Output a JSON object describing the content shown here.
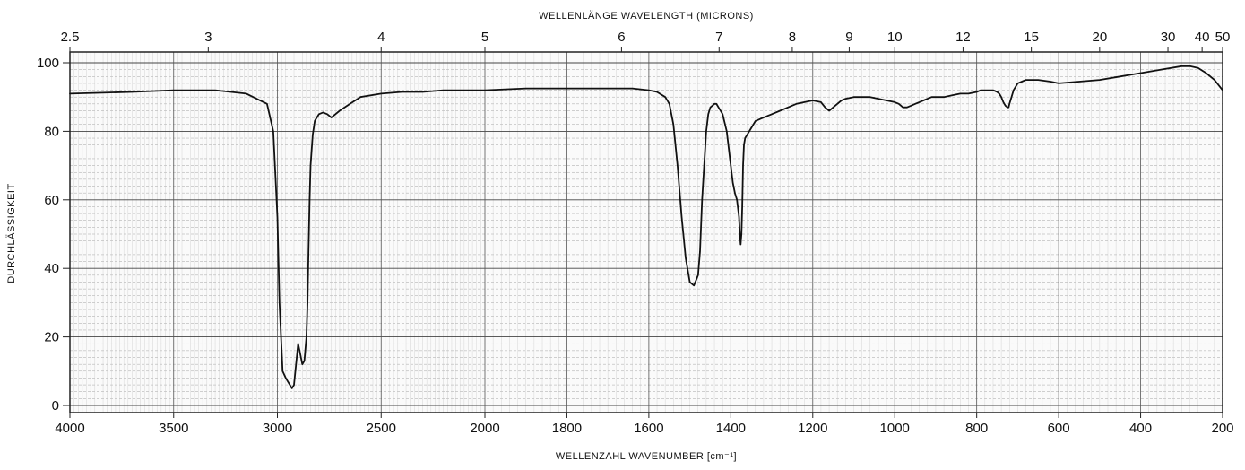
{
  "chart_data": {
    "type": "line",
    "top_axis_label": "WELLENLÄNGE  WAVELENGTH (MICRONS)",
    "bottom_axis_label": "WELLENZAHL WAVENUMBER [cm⁻¹]",
    "y_axis_label": "DURCHLÄSSIGKEIT",
    "xlim": [
      4000,
      200
    ],
    "ylim": [
      0,
      100
    ],
    "x_ticks": [
      4000,
      3500,
      3000,
      2500,
      2000,
      1800,
      1600,
      1400,
      1200,
      1000,
      800,
      600,
      400,
      200
    ],
    "x_tick_labels": [
      "4000",
      "3500",
      "3000",
      "2500",
      "2000",
      "1800",
      "1600",
      "1400",
      "1200",
      "1000",
      "800",
      "600",
      "400",
      "200"
    ],
    "y_ticks": [
      0,
      20,
      40,
      60,
      80,
      100
    ],
    "y_tick_labels": [
      "0",
      "20",
      "40",
      "60",
      "80",
      "100"
    ],
    "wavelength_ticks": [
      {
        "label": "2.5",
        "micron": 2.5
      },
      {
        "label": "3",
        "micron": 3
      },
      {
        "label": "4",
        "micron": 4
      },
      {
        "label": "5",
        "micron": 5
      },
      {
        "label": "6",
        "micron": 6
      },
      {
        "label": "7",
        "micron": 7
      },
      {
        "label": "8",
        "micron": 8
      },
      {
        "label": "9",
        "micron": 9
      },
      {
        "label": "10",
        "micron": 10
      },
      {
        "label": "12",
        "micron": 12
      },
      {
        "label": "15",
        "micron": 15
      },
      {
        "label": "20",
        "micron": 20
      },
      {
        "label": "30",
        "micron": 30
      },
      {
        "label": "40",
        "micron": 40
      },
      {
        "label": "50",
        "micron": 50
      }
    ],
    "grid": true,
    "series": [
      {
        "x": [
          4000,
          3700,
          3500,
          3300,
          3150,
          3050,
          3020,
          3000,
          2990,
          2975,
          2960,
          2950,
          2940,
          2930,
          2920,
          2910,
          2900,
          2890,
          2880,
          2870,
          2860,
          2855,
          2850,
          2845,
          2840,
          2830,
          2820,
          2800,
          2780,
          2760,
          2740,
          2720,
          2700,
          2650,
          2600,
          2500,
          2400,
          2300,
          2200,
          2100,
          2000,
          1900,
          1800,
          1700,
          1640,
          1600,
          1580,
          1560,
          1550,
          1540,
          1530,
          1520,
          1510,
          1500,
          1490,
          1480,
          1475,
          1470,
          1465,
          1460,
          1455,
          1450,
          1445,
          1440,
          1435,
          1430,
          1420,
          1410,
          1400,
          1395,
          1390,
          1385,
          1380,
          1378,
          1376,
          1374,
          1372,
          1370,
          1368,
          1365,
          1360,
          1350,
          1340,
          1320,
          1300,
          1280,
          1260,
          1240,
          1220,
          1200,
          1180,
          1170,
          1160,
          1150,
          1140,
          1130,
          1120,
          1100,
          1080,
          1060,
          1040,
          1020,
          1000,
          990,
          980,
          970,
          960,
          950,
          940,
          930,
          920,
          910,
          900,
          880,
          860,
          840,
          830,
          820,
          800,
          790,
          780,
          770,
          760,
          750,
          745,
          740,
          735,
          730,
          725,
          722,
          720,
          715,
          710,
          700,
          690,
          680,
          650,
          620,
          600,
          550,
          500,
          450,
          400,
          350,
          300,
          280,
          260,
          240,
          220,
          200
        ],
        "y": [
          91,
          91.5,
          92,
          92,
          91,
          88,
          80,
          55,
          30,
          10,
          8,
          7,
          6,
          5,
          6,
          12,
          18,
          15,
          12,
          13,
          20,
          30,
          45,
          60,
          70,
          79,
          83,
          85,
          85.5,
          85,
          84,
          85,
          86,
          88,
          90,
          91,
          91.5,
          91.5,
          92,
          92,
          92,
          92.5,
          92.5,
          92.5,
          92.5,
          92,
          91.5,
          90,
          88,
          82,
          70,
          55,
          43,
          36,
          35,
          38,
          45,
          60,
          70,
          80,
          85,
          87,
          87.5,
          88,
          88,
          87,
          85,
          80,
          70,
          65,
          62,
          60,
          55,
          50,
          47,
          50,
          58,
          70,
          76,
          78,
          79,
          81,
          83,
          84,
          85,
          86,
          87,
          88,
          88.5,
          89,
          88.5,
          87,
          86,
          87,
          88,
          89,
          89.5,
          90,
          90,
          90,
          89.5,
          89,
          88.5,
          88,
          87,
          87,
          87.5,
          88,
          88.5,
          89,
          89.5,
          90,
          90,
          90,
          90.5,
          91,
          91,
          91,
          91.5,
          92,
          92,
          92,
          92,
          91.5,
          91,
          90,
          88.5,
          87.5,
          87,
          87,
          88,
          90,
          92,
          94,
          94.5,
          95,
          95,
          94.5,
          94,
          94.5,
          95,
          96,
          97,
          98,
          99,
          99,
          98.5,
          97,
          95,
          92
        ]
      }
    ]
  }
}
